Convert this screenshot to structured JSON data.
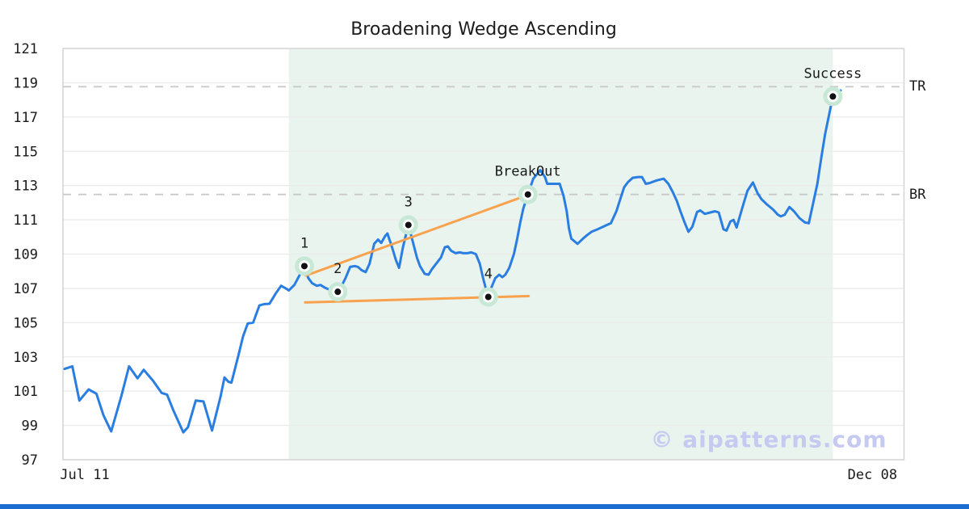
{
  "title": "Broadening Wedge Ascending",
  "watermark": "© aipatterns.com",
  "colors": {
    "price_line": "#2a7de1",
    "trend_line": "#f8a24e",
    "marker_halo": "#c7e8d5",
    "marker_ring": "#ffffff",
    "marker_dot": "#111111",
    "pattern_region": "#e9f4ef",
    "level_dash": "#c9c9c9",
    "grid": "#ebebeb",
    "plot_border": "#d4d4d4",
    "text": "#1a1a1a",
    "watermark_color": "#c7caf0",
    "footer_bar": "#1c6dd2"
  },
  "chart_data": {
    "type": "line",
    "title": "Broadening Wedge Ascending",
    "grid": true,
    "y_axis": {
      "min": 97,
      "max": 121,
      "ticks": [
        121,
        119,
        117,
        115,
        113,
        111,
        109,
        107,
        105,
        103,
        101,
        99,
        97
      ]
    },
    "x_axis": {
      "tick_labels": [
        {
          "label": "Jul 11",
          "idx": 2.6
        },
        {
          "label": "Dec 08",
          "idx": 104.1
        }
      ]
    },
    "levels": [
      {
        "name": "TR",
        "value": 118.77
      },
      {
        "name": "BR",
        "value": 112.48
      }
    ],
    "pattern": {
      "region": {
        "start_idx": 28.9,
        "end_idx": 99.0
      },
      "points": [
        {
          "label": "1",
          "idx": 30.9,
          "value": 108.3
        },
        {
          "label": "2",
          "idx": 35.2,
          "value": 106.8
        },
        {
          "label": "3",
          "idx": 44.3,
          "value": 110.7
        },
        {
          "label": "4",
          "idx": 54.6,
          "value": 106.5
        },
        {
          "label": "BreakOut",
          "idx": 59.7,
          "value": 112.48
        },
        {
          "label": "Success",
          "idx": 99.0,
          "value": 118.2
        }
      ],
      "trendlines": [
        {
          "name": "upper",
          "from": [
            31.1,
            107.75
          ],
          "to": [
            59.7,
            112.45
          ]
        },
        {
          "name": "lower",
          "from": [
            31.0,
            106.18
          ],
          "to": [
            59.8,
            106.55
          ]
        }
      ]
    },
    "series": [
      {
        "name": "price",
        "points": [
          [
            0,
            102.3
          ],
          [
            1,
            102.45
          ],
          [
            1.9,
            100.45
          ],
          [
            3.1,
            101.1
          ],
          [
            4.1,
            100.85
          ],
          [
            5,
            99.6
          ],
          [
            6,
            98.65
          ],
          [
            7.3,
            100.7
          ],
          [
            8.3,
            102.45
          ],
          [
            9.4,
            101.75
          ],
          [
            10.2,
            102.25
          ],
          [
            11.4,
            101.6
          ],
          [
            12.5,
            100.9
          ],
          [
            13.2,
            100.8
          ],
          [
            14,
            99.9
          ],
          [
            15.3,
            98.6
          ],
          [
            15.9,
            98.9
          ],
          [
            16.9,
            100.45
          ],
          [
            17.9,
            100.4
          ],
          [
            19,
            98.7
          ],
          [
            20.1,
            100.7
          ],
          [
            20.6,
            101.8
          ],
          [
            21.1,
            101.55
          ],
          [
            21.5,
            101.5
          ],
          [
            22.4,
            103.1
          ],
          [
            23,
            104.2
          ],
          [
            23.6,
            104.95
          ],
          [
            24.3,
            105
          ],
          [
            25.1,
            106
          ],
          [
            25.7,
            106.08
          ],
          [
            26.4,
            106.1
          ],
          [
            27.2,
            106.7
          ],
          [
            27.9,
            107.15
          ],
          [
            28.5,
            107
          ],
          [
            28.9,
            106.88
          ],
          [
            29.6,
            107.2
          ],
          [
            30.2,
            107.7
          ],
          [
            30.9,
            108.3
          ],
          [
            31.4,
            107.6
          ],
          [
            31.9,
            107.3
          ],
          [
            32.5,
            107.15
          ],
          [
            33,
            107.2
          ],
          [
            33.5,
            107.05
          ],
          [
            34,
            106.95
          ],
          [
            34.7,
            106.85
          ],
          [
            35.2,
            106.8
          ],
          [
            35.7,
            107.15
          ],
          [
            36.2,
            107.6
          ],
          [
            36.8,
            108.25
          ],
          [
            37.4,
            108.3
          ],
          [
            37.8,
            108.25
          ],
          [
            38.3,
            108.05
          ],
          [
            38.8,
            107.95
          ],
          [
            39.3,
            108.45
          ],
          [
            39.9,
            109.6
          ],
          [
            40.4,
            109.85
          ],
          [
            40.8,
            109.65
          ],
          [
            41.3,
            110.05
          ],
          [
            41.6,
            110.2
          ],
          [
            42.2,
            109.4
          ],
          [
            42.7,
            108.65
          ],
          [
            43.1,
            108.2
          ],
          [
            43.6,
            109.4
          ],
          [
            44.3,
            110.7
          ],
          [
            44.8,
            109.85
          ],
          [
            45.4,
            108.8
          ],
          [
            45.8,
            108.3
          ],
          [
            46.4,
            107.85
          ],
          [
            46.9,
            107.8
          ],
          [
            47.3,
            108.1
          ],
          [
            47.9,
            108.45
          ],
          [
            48.5,
            108.8
          ],
          [
            49,
            109.4
          ],
          [
            49.4,
            109.45
          ],
          [
            49.8,
            109.2
          ],
          [
            50.4,
            109.05
          ],
          [
            50.9,
            109.1
          ],
          [
            51.4,
            109.05
          ],
          [
            51.9,
            109.05
          ],
          [
            52.4,
            109.1
          ],
          [
            53,
            109
          ],
          [
            53.5,
            108.45
          ],
          [
            53.9,
            107.65
          ],
          [
            54.3,
            106.95
          ],
          [
            54.6,
            106.5
          ],
          [
            55,
            107.05
          ],
          [
            55.5,
            107.6
          ],
          [
            56,
            107.8
          ],
          [
            56.4,
            107.65
          ],
          [
            56.8,
            107.8
          ],
          [
            57.3,
            108.2
          ],
          [
            57.9,
            109
          ],
          [
            58.3,
            109.85
          ],
          [
            58.7,
            110.8
          ],
          [
            59.1,
            111.65
          ],
          [
            59.7,
            112.48
          ],
          [
            60.4,
            113.4
          ],
          [
            61.3,
            113.9
          ],
          [
            61.9,
            113.5
          ],
          [
            62.2,
            113.1
          ],
          [
            63.2,
            113.1
          ],
          [
            63.8,
            113.1
          ],
          [
            64.3,
            112.4
          ],
          [
            64.7,
            111.5
          ],
          [
            65,
            110.5
          ],
          [
            65.3,
            109.9
          ],
          [
            66.1,
            109.6
          ],
          [
            66.8,
            109.9
          ],
          [
            67.3,
            110.1
          ],
          [
            67.9,
            110.3
          ],
          [
            68.7,
            110.45
          ],
          [
            69.4,
            110.6
          ],
          [
            69.9,
            110.7
          ],
          [
            70.4,
            110.8
          ],
          [
            71.1,
            111.5
          ],
          [
            71.6,
            112.2
          ],
          [
            72.1,
            112.9
          ],
          [
            72.6,
            113.2
          ],
          [
            73.2,
            113.45
          ],
          [
            73.9,
            113.5
          ],
          [
            74.4,
            113.5
          ],
          [
            74.9,
            113.1
          ],
          [
            75.4,
            113.15
          ],
          [
            76.3,
            113.3
          ],
          [
            77.2,
            113.4
          ],
          [
            77.8,
            113.1
          ],
          [
            78.4,
            112.6
          ],
          [
            78.9,
            112.1
          ],
          [
            79.4,
            111.45
          ],
          [
            79.9,
            110.85
          ],
          [
            80.4,
            110.3
          ],
          [
            80.9,
            110.6
          ],
          [
            81.5,
            111.45
          ],
          [
            81.9,
            111.55
          ],
          [
            82.5,
            111.35
          ],
          [
            83.2,
            111.43
          ],
          [
            83.8,
            111.5
          ],
          [
            84.3,
            111.43
          ],
          [
            84.9,
            110.45
          ],
          [
            85.3,
            110.37
          ],
          [
            85.8,
            110.9
          ],
          [
            86.2,
            111
          ],
          [
            86.6,
            110.55
          ],
          [
            87.4,
            111.8
          ],
          [
            88,
            112.7
          ],
          [
            88.7,
            113.18
          ],
          [
            89.3,
            112.55
          ],
          [
            89.8,
            112.2
          ],
          [
            90.5,
            111.9
          ],
          [
            91.3,
            111.6
          ],
          [
            91.9,
            111.3
          ],
          [
            92.3,
            111.2
          ],
          [
            92.8,
            111.3
          ],
          [
            93.4,
            111.75
          ],
          [
            94,
            111.5
          ],
          [
            94.7,
            111.1
          ],
          [
            95.4,
            110.85
          ],
          [
            95.9,
            110.8
          ],
          [
            97,
            113.1
          ],
          [
            97.5,
            114.6
          ],
          [
            98,
            116
          ],
          [
            99,
            118.2
          ],
          [
            100,
            118.55
          ]
        ]
      }
    ]
  }
}
